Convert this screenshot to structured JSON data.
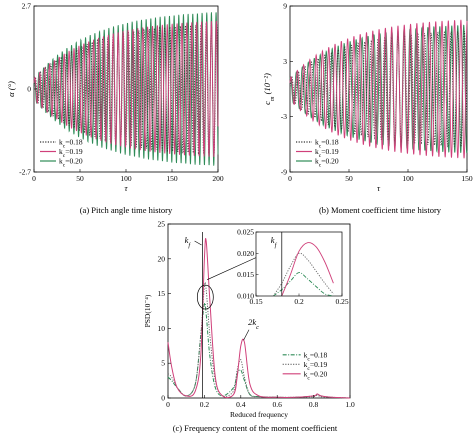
{
  "chart_data": [
    {
      "type": "line",
      "caption": "(a) Pitch angle time history",
      "xlabel": "τ",
      "ylabel": "α (°)",
      "xlim": [
        0,
        200
      ],
      "ylim": [
        -2.7,
        2.7
      ],
      "xticks": [
        "0",
        "50",
        "100",
        "150",
        "200"
      ],
      "yticks": [
        "-2.7",
        "0",
        "2.7"
      ],
      "legend": {
        "position": "lower-left"
      },
      "series": [
        {
          "name": "k_c=0.18",
          "color": "#333333",
          "dash": "dotted",
          "omega": 0.36,
          "amplitude": [
            0.35,
            2.2
          ]
        },
        {
          "name": "k_c=0.19",
          "color": "#d0407a",
          "dash": "solid",
          "omega": 0.38,
          "amplitude": [
            0.35,
            2.3
          ]
        },
        {
          "name": "k_c=0.20",
          "color": "#2e8b57",
          "dash": "solid",
          "omega": 0.4,
          "amplitude": [
            0.35,
            2.6
          ]
        }
      ]
    },
    {
      "type": "line",
      "caption": "(b) Moment coefficient time history",
      "xlabel": "τ",
      "ylabel": "c_m (10⁻²)",
      "xlim": [
        0,
        150
      ],
      "ylim": [
        -9,
        9
      ],
      "xticks": [
        "0",
        "50",
        "100",
        "150"
      ],
      "yticks": [
        "-9",
        "-3",
        "3",
        "9"
      ],
      "legend": {
        "position": "lower-left"
      },
      "series": [
        {
          "name": "k_c=0.18",
          "color": "#333333",
          "dash": "dotted",
          "omega": 0.36,
          "amplitude": [
            1.2,
            6.5
          ]
        },
        {
          "name": "k_c=0.19",
          "color": "#d0407a",
          "dash": "solid",
          "omega": 0.38,
          "amplitude": [
            1.2,
            7.8
          ]
        },
        {
          "name": "k_c=0.20",
          "color": "#2e8b57",
          "dash": "solid",
          "omega": 0.4,
          "amplitude": [
            1.2,
            7.2
          ]
        }
      ]
    },
    {
      "type": "line",
      "caption": "(c) Frequency content of the moment coefficient",
      "xlabel": "Reduced frequency",
      "ylabel": "PSD(10⁻⁴)",
      "xlim": [
        0,
        1.0
      ],
      "ylim": [
        0,
        25
      ],
      "xticks": [
        "0",
        "0.2",
        "0.4",
        "0.6",
        "0.8",
        "1.0"
      ],
      "yticks": [
        "0",
        "5",
        "10",
        "15",
        "20",
        "25"
      ],
      "legend": {
        "position": "right"
      },
      "annotations": {
        "kf": "k_f",
        "two_kc": "2k_c",
        "inset_kf": "k_f"
      },
      "series": [
        {
          "name": "k_c=0.18",
          "color": "#2e8b57",
          "dash": "dashdot",
          "x": [
            0,
            0.02,
            0.05,
            0.1,
            0.15,
            0.18,
            0.2,
            0.21,
            0.23,
            0.26,
            0.3,
            0.36,
            0.38,
            0.4,
            0.42,
            0.45,
            0.5,
            0.6,
            0.7,
            0.8,
            0.82,
            0.84,
            0.9,
            1.0
          ],
          "y": [
            3.0,
            2.5,
            1.5,
            0.3,
            2.0,
            9.0,
            13.5,
            12.0,
            6.0,
            1.5,
            0.3,
            1.5,
            3.5,
            4.0,
            2.5,
            0.5,
            0.2,
            0.1,
            0.1,
            0.3,
            0.5,
            0.3,
            0.1,
            0.0
          ]
        },
        {
          "name": "k_c=0.19",
          "color": "#666666",
          "dash": "dotted",
          "x": [
            0,
            0.02,
            0.05,
            0.1,
            0.15,
            0.18,
            0.2,
            0.21,
            0.23,
            0.26,
            0.3,
            0.36,
            0.38,
            0.4,
            0.42,
            0.45,
            0.5,
            0.6,
            0.7,
            0.8,
            0.82,
            0.84,
            0.9,
            1.0
          ],
          "y": [
            3.5,
            3.0,
            1.5,
            0.3,
            2.0,
            9.0,
            16.0,
            15.5,
            9.0,
            2.5,
            0.3,
            1.0,
            4.0,
            5.5,
            3.0,
            0.5,
            0.2,
            0.1,
            0.1,
            0.2,
            0.4,
            0.2,
            0.1,
            0.0
          ]
        },
        {
          "name": "k_c=0.20",
          "color": "#d0407a",
          "dash": "solid",
          "x": [
            0,
            0.02,
            0.05,
            0.1,
            0.15,
            0.18,
            0.2,
            0.21,
            0.23,
            0.26,
            0.3,
            0.36,
            0.38,
            0.4,
            0.42,
            0.45,
            0.5,
            0.6,
            0.7,
            0.8,
            0.82,
            0.84,
            0.9,
            1.0
          ],
          "y": [
            8.0,
            4.5,
            1.5,
            0.3,
            1.0,
            6.0,
            20.0,
            22.5,
            14.0,
            3.0,
            0.3,
            0.5,
            3.0,
            7.5,
            8.0,
            2.0,
            0.3,
            0.1,
            0.1,
            0.3,
            0.6,
            0.3,
            0.1,
            0.0
          ]
        }
      ],
      "inset": {
        "xlim": [
          0.15,
          0.25
        ],
        "ylim": [
          0.01,
          0.025
        ],
        "xticks": [
          "0.15",
          "0.2",
          "0.25"
        ],
        "yticks": [
          "0.010",
          "0.015",
          "0.020",
          "0.025"
        ],
        "kf_x": 0.18,
        "series": [
          {
            "name": "k_c=0.18",
            "color": "#2e8b57",
            "dash": "dashdot",
            "x": [
              0.17,
              0.18,
              0.19,
              0.2,
              0.21,
              0.22,
              0.23,
              0.24
            ],
            "y": [
              0.01,
              0.0115,
              0.0135,
              0.0155,
              0.014,
              0.0122,
              0.0105,
              0.01
            ]
          },
          {
            "name": "k_c=0.19",
            "color": "#666666",
            "dash": "dotted",
            "x": [
              0.17,
              0.18,
              0.19,
              0.2,
              0.21,
              0.22,
              0.23,
              0.24
            ],
            "y": [
              0.01,
              0.013,
              0.017,
              0.02,
              0.0185,
              0.0158,
              0.013,
              0.0105
            ]
          },
          {
            "name": "k_c=0.20",
            "color": "#d0407a",
            "dash": "solid",
            "x": [
              0.18,
              0.19,
              0.2,
              0.21,
              0.22,
              0.23,
              0.24
            ],
            "y": [
              0.01,
              0.015,
              0.0205,
              0.0225,
              0.0215,
              0.018,
              0.013
            ]
          }
        ]
      }
    }
  ]
}
